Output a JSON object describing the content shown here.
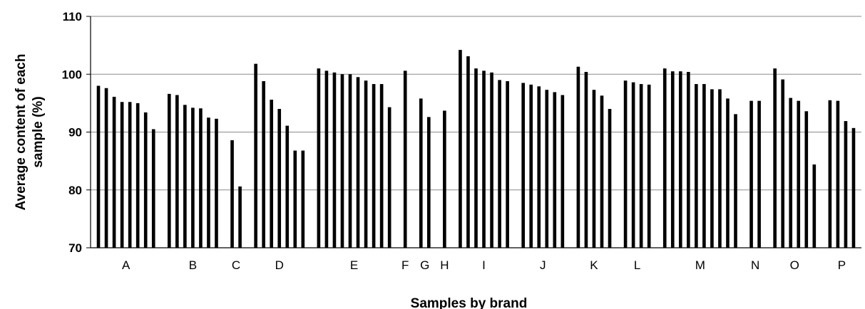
{
  "chart_data": {
    "type": "bar",
    "title": "",
    "xlabel": "Samples by brand",
    "ylabel_lines": [
      "Average content of each",
      "sample (%)"
    ],
    "ylim": [
      70,
      110
    ],
    "yticks": [
      70,
      80,
      90,
      100,
      110
    ],
    "grid": "horizontal",
    "bar_color": "#000000",
    "series": [
      {
        "brand": "A",
        "values": [
          98.0,
          97.6,
          96.1,
          95.2,
          95.2,
          95.0,
          93.4,
          90.5
        ]
      },
      {
        "brand": "B",
        "values": [
          96.6,
          96.4,
          94.7,
          94.2,
          94.1,
          92.5,
          92.3
        ]
      },
      {
        "brand": "C",
        "values": [
          88.6,
          80.6
        ]
      },
      {
        "brand": "D",
        "values": [
          101.8,
          98.8,
          95.6,
          94.0,
          91.1,
          86.8,
          86.8
        ]
      },
      {
        "brand": "E",
        "values": [
          101.0,
          100.6,
          100.3,
          100.0,
          100.0,
          99.5,
          98.9,
          98.3,
          98.3,
          94.3
        ]
      },
      {
        "brand": "F",
        "values": [
          100.6
        ]
      },
      {
        "brand": "G",
        "values": [
          95.8,
          92.6
        ]
      },
      {
        "brand": "H",
        "values": [
          93.7
        ]
      },
      {
        "brand": "I",
        "values": [
          104.2,
          103.1,
          101.0,
          100.6,
          100.3,
          99.0,
          98.8
        ]
      },
      {
        "brand": "J",
        "values": [
          98.5,
          98.2,
          97.9,
          97.3,
          96.9,
          96.4
        ]
      },
      {
        "brand": "K",
        "values": [
          101.3,
          100.4,
          97.3,
          96.3,
          94.0
        ]
      },
      {
        "brand": "L",
        "values": [
          98.9,
          98.6,
          98.3,
          98.2
        ]
      },
      {
        "brand": "M",
        "values": [
          101.0,
          100.5,
          100.5,
          100.4,
          98.3,
          98.3,
          97.4,
          97.4,
          95.8,
          93.1
        ]
      },
      {
        "brand": "N",
        "values": [
          95.4,
          95.4
        ]
      },
      {
        "brand": "O",
        "values": [
          101.0,
          99.1,
          95.9,
          95.4,
          93.6,
          84.4
        ]
      },
      {
        "brand": "P",
        "values": [
          95.5,
          95.4,
          91.9,
          90.7
        ]
      }
    ]
  }
}
